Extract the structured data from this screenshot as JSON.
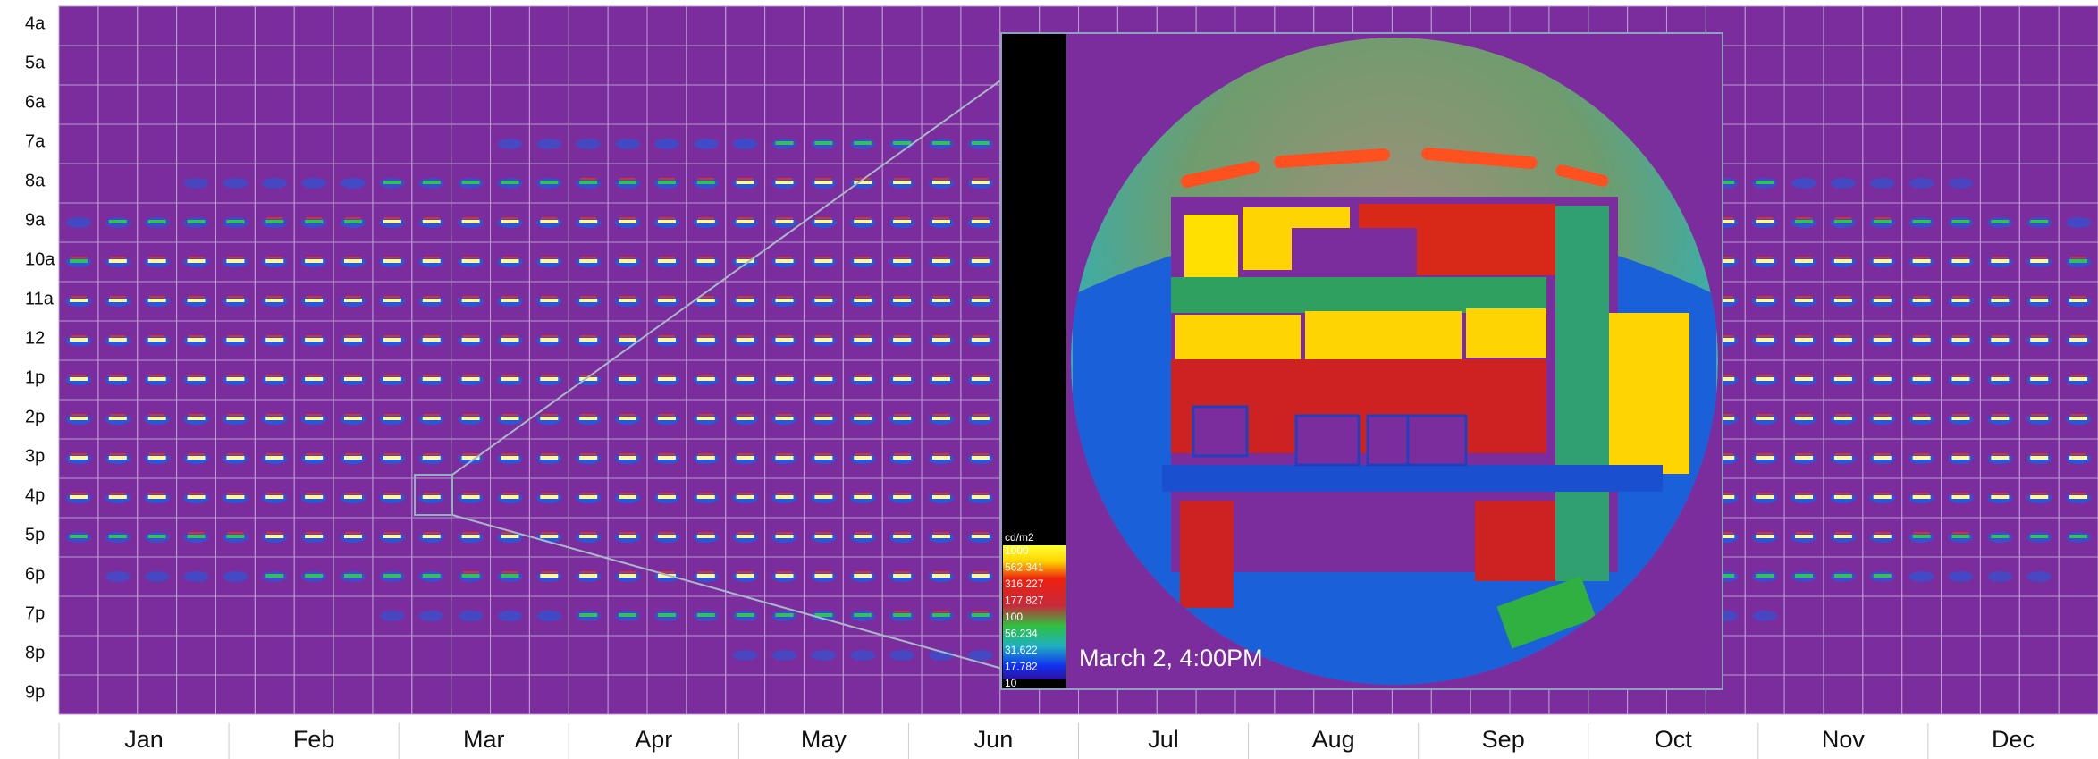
{
  "rows": [
    "4a",
    "5a",
    "6a",
    "7a",
    "8a",
    "9a",
    "10a",
    "11a",
    "12",
    "1p",
    "2p",
    "3p",
    "4p",
    "5p",
    "6p",
    "7p",
    "8p",
    "9p"
  ],
  "months": [
    "Jan",
    "Feb",
    "Mar",
    "Apr",
    "May",
    "Jun",
    "Jul",
    "Aug",
    "Sep",
    "Oct",
    "Nov",
    "Dec"
  ],
  "legend": {
    "title": "cd/m2",
    "labels": [
      "1000",
      "562.341",
      "316.227",
      "177.827",
      "100",
      "56.234",
      "31.622",
      "17.782",
      "10"
    ]
  },
  "inset": {
    "caption": "March 2, 4:00PM"
  }
}
